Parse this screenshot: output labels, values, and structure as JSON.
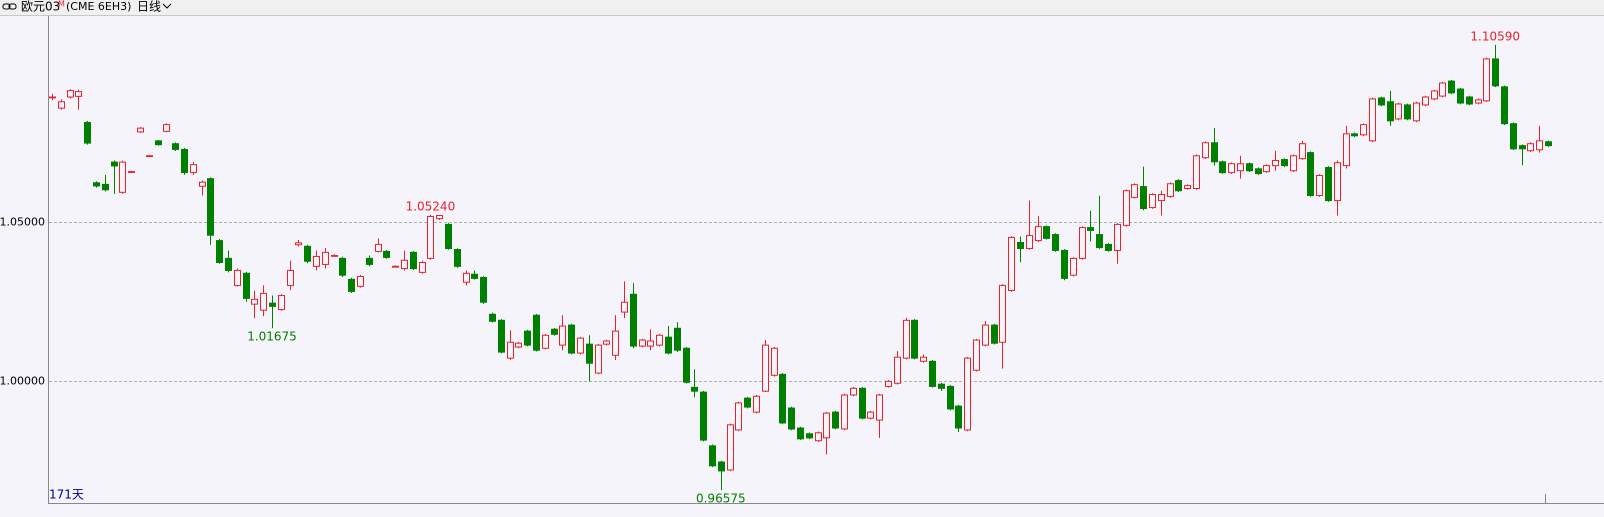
{
  "chart_data": {
    "type": "candlestick",
    "header": {
      "name": "欧元03",
      "flag": "M",
      "code": "(CME 6EH3)",
      "period": "日线"
    },
    "count_label": "171天",
    "up_color": "#e8222a",
    "down_color": "#008000",
    "ylim": [
      0.9617,
      1.115
    ],
    "yticks": [
      {
        "value": 1.05,
        "label": "1.05000"
      },
      {
        "value": 1,
        "label": "1.00000"
      }
    ],
    "grid": true,
    "open": [
      1.0895,
      1.086,
      1.0895,
      1.0897,
      1.0815,
      1.0625,
      1.062,
      1.069,
      1.0595,
      1.066,
      1.0785,
      1.071,
      1.0757,
      1.0787,
      1.0748,
      1.073,
      1.0657,
      1.0614,
      1.0638,
      1.0443,
      1.0387,
      1.0302,
      1.034,
      1.0243,
      1.0224,
      1.0246,
      1.0226,
      1.0302,
      1.043,
      1.0425,
      1.0362,
      1.0368,
      1.0396,
      1.0387,
      1.0321,
      1.0299,
      1.0387,
      1.0409,
      1.0409,
      1.0362,
      1.0355,
      1.0406,
      1.0343,
      1.0387,
      1.0512,
      1.0494,
      1.0415,
      1.0312,
      1.0337,
      1.0327,
      1.0211,
      1.0192,
      1.0073,
      1.0108,
      1.0158,
      1.0208,
      1.0104,
      1.0164,
      1.0114,
      1.0177,
      1.0089,
      1.0117,
      1.0026,
      1.0117,
      1.0082,
      1.0218,
      1.0274,
      1.0111,
      1.0111,
      1.0114,
      1.0139,
      1.0167,
      1.0104,
      0.9981,
      0.9966,
      0.9797,
      0.9746,
      0.9721,
      0.9847,
      0.9947,
      0.9903,
      0.9969,
      1.0019,
      1.0022,
      0.9916,
      0.9853,
      0.9835,
      0.9813,
      0.9822,
      0.9903,
      0.985,
      0.9957,
      0.9978,
      0.9884,
      0.9878,
      0.9984,
      0.9994,
      1.0073,
      1.0192,
      1.0063,
      1.0063,
      0.9991,
      0.9984,
      0.9922,
      0.9847,
      1.0035,
      1.0114,
      1.0177,
      1.0123,
      1.0286,
      1.0437,
      1.0418,
      1.0443,
      1.0487,
      1.0462,
      1.0412,
      1.0334,
      1.0387,
      1.0484,
      1.0462,
      1.0431,
      1.0412,
      1.0491,
      1.0579,
      1.0613,
      1.0547,
      1.0569,
      1.0582,
      1.0632,
      1.0607,
      1.0607,
      1.0704,
      1.0751,
      1.0691,
      1.0657,
      1.0663,
      1.0685,
      1.0669,
      1.066,
      1.0679,
      1.0698,
      1.0663,
      1.0701,
      1.072,
      1.0585,
      1.0673,
      1.0569,
      1.0679,
      1.0779,
      1.0776,
      1.0757,
      1.0892,
      1.088,
      1.0826,
      1.087,
      1.082,
      1.087,
      1.0889,
      1.0898,
      1.0945,
      1.092,
      1.0895,
      1.0876,
      1.0883,
      1.1015,
      1.0927,
      1.0811,
      1.0742,
      1.0726,
      1.0729,
      1.0754
    ],
    "high": [
      1.0905,
      1.0888,
      1.092,
      1.0918,
      1.082,
      1.063,
      1.065,
      1.0695,
      1.0695,
      1.0663,
      1.08,
      1.0713,
      1.076,
      1.0812,
      1.0752,
      1.0735,
      1.069,
      1.0632,
      1.0642,
      1.0448,
      1.0412,
      1.0355,
      1.0345,
      1.0285,
      1.0302,
      1.027,
      1.0275,
      1.038,
      1.0445,
      1.043,
      1.0412,
      1.042,
      1.04,
      1.0392,
      1.0326,
      1.0335,
      1.0396,
      1.045,
      1.0413,
      1.0365,
      1.0412,
      1.041,
      1.038,
      1.0524,
      1.0524,
      1.0498,
      1.0419,
      1.0349,
      1.0349,
      1.0331,
      1.0216,
      1.0196,
      1.0161,
      1.0124,
      1.0162,
      1.0212,
      1.0149,
      1.0168,
      1.0208,
      1.0181,
      1.014,
      1.0145,
      1.0118,
      1.0131,
      1.0208,
      1.0315,
      1.0309,
      1.0134,
      1.0164,
      1.0149,
      1.0174,
      1.0186,
      1.0108,
      1.0038,
      0.997,
      0.9801,
      0.975,
      0.9867,
      0.9936,
      0.9951,
      0.9957,
      1.013,
      1.0108,
      1.0026,
      0.992,
      0.9857,
      0.9839,
      0.9842,
      0.9904,
      0.9907,
      0.9961,
      0.9982,
      0.9982,
      0.9907,
      0.9961,
      1.0004,
      1.0095,
      1.02,
      1.0196,
      1.0085,
      1.0067,
      0.9995,
      0.9988,
      0.9926,
      1.0077,
      1.0134,
      1.019,
      1.0181,
      1.0306,
      1.0457,
      1.0456,
      1.0569,
      1.052,
      1.0491,
      1.0466,
      1.0416,
      1.0391,
      1.0488,
      1.0537,
      1.0584,
      1.0435,
      1.0498,
      1.0604,
      1.0623,
      1.0676,
      1.0592,
      1.06,
      1.0626,
      1.0636,
      1.062,
      1.0714,
      1.0755,
      1.0798,
      1.0695,
      1.0689,
      1.071,
      1.0689,
      1.0673,
      1.0683,
      1.0726,
      1.0702,
      1.0714,
      1.0757,
      1.0724,
      1.0652,
      1.0677,
      1.0695,
      1.0804,
      1.0783,
      1.0812,
      1.0893,
      1.0896,
      1.0914,
      1.0877,
      1.0874,
      1.088,
      1.0899,
      1.0918,
      1.0943,
      1.0949,
      1.0924,
      1.0899,
      1.089,
      1.1019,
      1.1059,
      1.0931,
      1.0815,
      1.0746,
      1.0752,
      1.0804,
      1.0758
    ],
    "low": [
      1.0885,
      1.0855,
      1.089,
      1.0855,
      1.0745,
      1.061,
      1.0598,
      1.059,
      1.059,
      1.0657,
      1.0782,
      1.0707,
      1.0742,
      1.0784,
      1.0725,
      1.065,
      1.065,
      1.0585,
      1.043,
      1.037,
      1.0343,
      1.0298,
      1.025,
      1.0199,
      1.0205,
      1.01675,
      1.0222,
      1.0287,
      1.0425,
      1.0372,
      1.0349,
      1.0355,
      1.0392,
      1.0328,
      1.0278,
      1.0295,
      1.0362,
      1.0405,
      1.0386,
      1.0359,
      1.0349,
      1.035,
      1.0339,
      1.0383,
      1.0508,
      1.0414,
      1.0357,
      1.0302,
      1.032,
      1.0244,
      1.0185,
      1.0088,
      1.0067,
      1.0104,
      1.011,
      1.0094,
      1.01,
      1.0144,
      1.0098,
      1.0085,
      1.0085,
      1.0,
      1.0022,
      1.0113,
      1.0067,
      1.0199,
      1.0104,
      1.0107,
      1.0098,
      1.011,
      1.0085,
      1.0092,
      0.9993,
      0.995,
      0.9811,
      0.973,
      0.96575,
      0.9717,
      0.9843,
      0.9915,
      0.9899,
      0.9966,
      1.0015,
      0.9865,
      0.9846,
      0.9815,
      0.9818,
      0.9809,
      0.977,
      0.9849,
      0.9846,
      0.9953,
      0.988,
      0.988,
      0.9822,
      0.998,
      0.999,
      1.0069,
      1.0069,
      1.0059,
      0.998,
      0.997,
      0.9909,
      0.984,
      0.9843,
      1.0031,
      1.011,
      1.0116,
      1.004,
      1.0282,
      1.0375,
      1.0414,
      1.0439,
      1.0446,
      1.0408,
      1.0318,
      1.033,
      1.0383,
      1.044,
      1.0417,
      1.0408,
      1.037,
      1.0487,
      1.0575,
      1.0538,
      1.0543,
      1.0522,
      1.0578,
      1.0596,
      1.0603,
      1.0603,
      1.07,
      1.0679,
      1.0653,
      1.0653,
      1.0638,
      1.0659,
      1.065,
      1.0656,
      1.0663,
      1.0675,
      1.0659,
      1.0697,
      1.0581,
      1.0581,
      1.0565,
      1.0522,
      1.067,
      1.0769,
      1.0772,
      1.0753,
      1.0866,
      1.0804,
      1.0822,
      1.0822,
      1.0816,
      1.0866,
      1.0885,
      1.0894,
      1.0904,
      1.0872,
      1.0869,
      1.0872,
      1.0879,
      1.0926,
      1.0807,
      1.0728,
      1.068,
      1.0722,
      1.072,
      1.0738
    ],
    "close": [
      1.0895,
      1.088,
      1.0915,
      1.0912,
      1.075,
      1.0615,
      1.0603,
      1.0678,
      1.069,
      1.066,
      1.0797,
      1.071,
      1.0745,
      1.0808,
      1.073,
      1.0657,
      1.0682,
      1.0627,
      1.046,
      1.0374,
      1.0349,
      1.0349,
      1.0261,
      1.0258,
      1.0277,
      1.0236,
      1.027,
      1.0349,
      1.0436,
      1.0378,
      1.0393,
      1.0406,
      1.0396,
      1.0334,
      1.0283,
      1.033,
      1.0368,
      1.0431,
      1.039,
      1.0362,
      1.0381,
      1.0355,
      1.0374,
      1.0519,
      1.0522,
      1.0418,
      1.0362,
      1.034,
      1.0324,
      1.0249,
      1.0189,
      1.0092,
      1.0123,
      1.012,
      1.0114,
      1.0098,
      1.0145,
      1.0148,
      1.0174,
      1.0089,
      1.0136,
      1.0057,
      1.0114,
      1.0127,
      1.0158,
      1.0249,
      1.0111,
      1.013,
      1.0127,
      1.0145,
      1.0089,
      1.0098,
      0.9997,
      0.9969,
      0.9815,
      0.9734,
      0.9718,
      0.9863,
      0.9932,
      0.9919,
      0.9953,
      1.0114,
      1.0104,
      0.9869,
      0.985,
      0.9819,
      0.9822,
      0.9838,
      0.99,
      0.9853,
      0.9957,
      0.9978,
      0.9884,
      0.9903,
      0.9957,
      1.0,
      1.0076,
      1.0192,
      1.0073,
      1.0076,
      0.9984,
      0.9978,
      0.9913,
      0.9853,
      1.0073,
      1.013,
      1.0177,
      1.012,
      1.0302,
      1.0453,
      1.0418,
      1.0459,
      1.0487,
      1.045,
      1.0412,
      1.0324,
      1.0387,
      1.0484,
      1.0475,
      1.0421,
      1.0412,
      1.0494,
      1.06,
      1.0619,
      1.0544,
      1.0588,
      1.0588,
      1.0622,
      1.06,
      1.0616,
      1.071,
      1.0751,
      1.0691,
      1.0657,
      1.0685,
      1.0685,
      1.0663,
      1.0654,
      1.0679,
      1.0695,
      1.0679,
      1.071,
      1.0748,
      1.0585,
      1.0648,
      1.0569,
      1.0688,
      1.0779,
      1.0773,
      1.0808,
      1.0889,
      1.087,
      1.082,
      1.0873,
      1.0826,
      1.0876,
      1.0895,
      1.0914,
      1.0939,
      1.0908,
      1.0876,
      1.0873,
      1.0886,
      1.1015,
      1.093,
      1.0811,
      1.0732,
      1.0732,
      1.0748,
      1.0757,
      1.0742
    ],
    "annotations": [
      {
        "label": "1.05240",
        "value": 1.0524
      },
      {
        "label": "1.01675",
        "value": 1.01675
      },
      {
        "label": "0.96575",
        "value": 0.96575
      },
      {
        "label": "1.10590",
        "value": 1.1059
      }
    ]
  }
}
